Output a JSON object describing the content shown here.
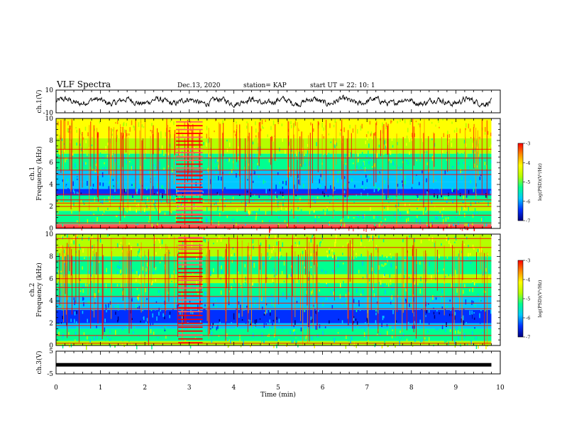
{
  "header": {
    "title": "VLF Spectra",
    "date": "Dec.13, 2020",
    "station": "station= KAP",
    "start": "start  UT  =   22: 10: 1"
  },
  "colors": {
    "scale": [
      "#000080",
      "#0030ff",
      "#00c8ff",
      "#00ff90",
      "#b4ff00",
      "#ffff00",
      "#ff8c00",
      "#ff0000",
      "#ff5a5a"
    ],
    "trace": "#000000"
  },
  "chart_data": [
    {
      "type": "line",
      "panel": "ch1-waveform",
      "ylabel": "ch.1(V)",
      "ylim": [
        -10,
        10
      ],
      "yticks": [
        "10",
        "-10"
      ],
      "x_range_min": [
        0,
        9.8
      ],
      "description": "noise-like waveform, amplitude roughly +/-3 V"
    },
    {
      "type": "heatmap",
      "panel": "ch1-spectrogram",
      "ylabel": "ch.1\nFrequency (kHz)",
      "ylim": [
        0,
        10
      ],
      "yticks": [
        "0",
        "2",
        "4",
        "6",
        "8",
        "10"
      ],
      "x_range_min": [
        0,
        9.8
      ],
      "colorbar": {
        "label": "log(PSD)(V²/Hz)",
        "range": [
          -7,
          -3
        ],
        "ticks": [
          "-3",
          "-4",
          "-5",
          "-6",
          "-7"
        ]
      },
      "bands_khz": [
        {
          "f": [
            0,
            0.4
          ],
          "level": 8
        },
        {
          "f": [
            0.4,
            1.6
          ],
          "level": 3
        },
        {
          "f": [
            1.6,
            2.4
          ],
          "level": 4
        },
        {
          "f": [
            2.4,
            3.0
          ],
          "level": 3
        },
        {
          "f": [
            3.0,
            3.6
          ],
          "level": 1
        },
        {
          "f": [
            3.6,
            4.2
          ],
          "level": 2
        },
        {
          "f": [
            4.2,
            5.3
          ],
          "level": 2
        },
        {
          "f": [
            5.3,
            6.8
          ],
          "level": 3
        },
        {
          "f": [
            6.8,
            8.2
          ],
          "level": 4
        },
        {
          "f": [
            8.2,
            10
          ],
          "level": 5
        }
      ],
      "lines_khz": [
        0.1,
        0.5,
        1.2,
        2.0,
        2.3,
        2.6,
        3.1,
        4.9,
        5.3,
        6.4,
        7.2
      ],
      "bursts": [
        {
          "t": [
            2.7,
            3.3
          ],
          "f": [
            0,
            10
          ]
        }
      ]
    },
    {
      "type": "heatmap",
      "panel": "ch2-spectrogram",
      "ylabel": "ch.2\nFrequency (kHz)",
      "ylim": [
        0,
        10
      ],
      "yticks": [
        "0",
        "2",
        "4",
        "6",
        "8",
        "10"
      ],
      "x_range_min": [
        0,
        9.8
      ],
      "colorbar": {
        "label": "log(PSD)(V²/Hz)",
        "range": [
          -7,
          -3
        ],
        "ticks": [
          "-3",
          "-4",
          "-5",
          "-6",
          "-7"
        ]
      },
      "bands_khz": [
        {
          "f": [
            0,
            0.4
          ],
          "level": 4
        },
        {
          "f": [
            0.4,
            1.5
          ],
          "level": 3
        },
        {
          "f": [
            1.5,
            2.0
          ],
          "level": 2
        },
        {
          "f": [
            2.0,
            3.2
          ],
          "level": 1
        },
        {
          "f": [
            3.2,
            4.4
          ],
          "level": 2
        },
        {
          "f": [
            4.4,
            5.6
          ],
          "level": 3
        },
        {
          "f": [
            5.6,
            6.4
          ],
          "level": 4
        },
        {
          "f": [
            6.4,
            8.0
          ],
          "level": 3
        },
        {
          "f": [
            8.0,
            10
          ],
          "level": 4
        }
      ],
      "lines_khz": [
        0.2,
        0.9,
        1.8,
        3.3,
        3.8,
        4.4,
        5.2,
        6.0,
        7.6,
        8.8,
        9.6
      ],
      "bursts": [
        {
          "t": [
            2.75,
            3.3
          ],
          "f": [
            0,
            10
          ]
        }
      ]
    },
    {
      "type": "line",
      "panel": "ch3-waveform",
      "ylabel": "ch.3(V)",
      "ylim": [
        -5,
        5
      ],
      "yticks": [
        "5",
        "-5"
      ],
      "x_range_min": [
        0,
        9.8
      ],
      "description": "thick flat trace near -1 V"
    }
  ],
  "xaxis": {
    "label": "Time (min)",
    "range": [
      0,
      10
    ],
    "ticks": [
      "0",
      "1",
      "2",
      "3",
      "4",
      "5",
      "6",
      "7",
      "8",
      "9",
      "10"
    ]
  }
}
